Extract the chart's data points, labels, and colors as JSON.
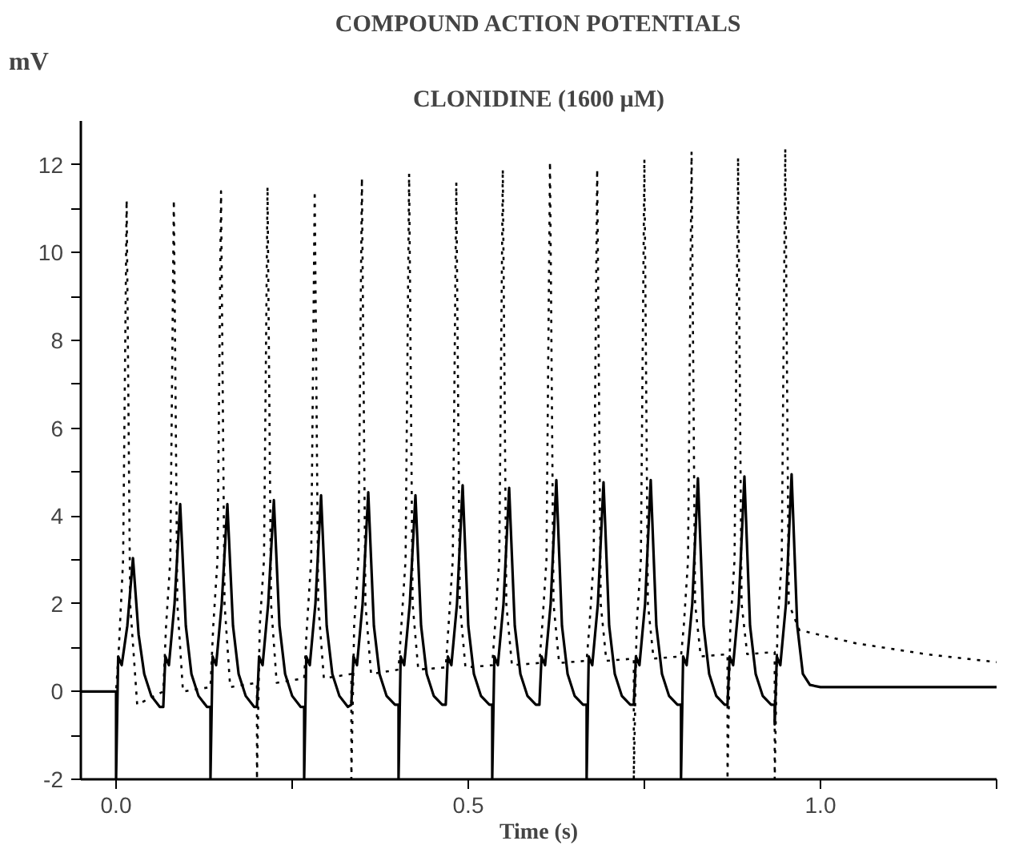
{
  "chart_data": {
    "type": "line",
    "title": "COMPOUND ACTION POTENTIALS",
    "subtitle": "CLONIDINE (1600 µM)",
    "xlabel": "Time (s)",
    "ylabel": "mV",
    "xlim": [
      -0.05,
      1.25
    ],
    "xticks": [
      {
        "value": 0,
        "label": "0.0"
      },
      {
        "value": 0.25,
        "label": null
      },
      {
        "value": 0.5,
        "label": "0.5"
      },
      {
        "value": 0.75,
        "label": null
      },
      {
        "value": 1.0,
        "label": "1.0"
      },
      {
        "value": 1.25,
        "label": null
      }
    ],
    "ylim": [
      -2,
      13
    ],
    "yticks": [
      -2,
      {
        "value": -1,
        "label": null
      },
      0,
      {
        "value": 1,
        "label": null
      },
      2,
      {
        "value": 3,
        "label": null
      },
      4,
      {
        "value": 5,
        "label": null
      },
      6,
      {
        "value": 7,
        "label": null
      },
      8,
      {
        "value": 9,
        "label": null
      },
      10,
      {
        "value": 11,
        "label": null
      },
      12
    ],
    "grid": false,
    "series": [
      {
        "color": "#000000",
        "line_style": "solid",
        "x": [
          -0.05,
          0,
          0,
          0.003,
          0.008,
          0.016,
          0.024,
          0.032,
          0.04,
          0.05,
          0.062,
          0.067,
          0.07,
          0.075,
          0.083,
          0.091,
          0.099,
          0.107,
          0.117,
          0.129,
          0.134,
          0.134,
          0.137,
          0.142,
          0.15,
          0.158,
          0.166,
          0.174,
          0.184,
          0.196,
          0.2,
          0.203,
          0.208,
          0.216,
          0.224,
          0.232,
          0.24,
          0.25,
          0.262,
          0.267,
          0.267,
          0.27,
          0.275,
          0.283,
          0.291,
          0.299,
          0.307,
          0.317,
          0.329,
          0.334,
          0.337,
          0.342,
          0.35,
          0.358,
          0.366,
          0.374,
          0.384,
          0.396,
          0.401,
          0.401,
          0.404,
          0.409,
          0.417,
          0.425,
          0.433,
          0.441,
          0.451,
          0.463,
          0.468,
          0.471,
          0.476,
          0.484,
          0.492,
          0.5,
          0.508,
          0.518,
          0.53,
          0.534,
          0.534,
          0.537,
          0.542,
          0.55,
          0.558,
          0.566,
          0.574,
          0.584,
          0.596,
          0.601,
          0.604,
          0.609,
          0.617,
          0.625,
          0.633,
          0.641,
          0.651,
          0.663,
          0.668,
          0.668,
          0.671,
          0.676,
          0.684,
          0.692,
          0.7,
          0.708,
          0.718,
          0.73,
          0.735,
          0.738,
          0.743,
          0.751,
          0.759,
          0.767,
          0.775,
          0.785,
          0.797,
          0.802,
          0.802,
          0.805,
          0.81,
          0.818,
          0.826,
          0.834,
          0.842,
          0.852,
          0.864,
          0.868,
          0.871,
          0.876,
          0.884,
          0.892,
          0.9,
          0.908,
          0.918,
          0.93,
          0.935,
          0.935,
          0.938,
          0.943,
          0.951,
          0.959,
          0.967,
          0.975,
          0.985,
          1.0,
          1.25
        ],
        "values": [
          0,
          0,
          -2,
          0.8,
          0.6,
          1.5,
          3.04,
          1.3,
          0.4,
          -0.1,
          -0.35,
          -0.35,
          0.8,
          0.6,
          2.0,
          4.27,
          1.5,
          0.4,
          -0.1,
          -0.35,
          -0.35,
          -2,
          0.8,
          0.6,
          2.0,
          4.27,
          1.5,
          0.4,
          -0.1,
          -0.35,
          -0.35,
          0.8,
          0.6,
          2.0,
          4.36,
          1.5,
          0.4,
          -0.1,
          -0.35,
          -0.35,
          -2,
          0.8,
          0.6,
          2.0,
          4.47,
          1.5,
          0.4,
          -0.1,
          -0.35,
          -0.3,
          0.8,
          0.6,
          2.0,
          4.54,
          1.5,
          0.4,
          -0.1,
          -0.3,
          -0.3,
          -2,
          0.8,
          0.6,
          2.0,
          4.47,
          1.5,
          0.4,
          -0.1,
          -0.3,
          -0.3,
          0.8,
          0.6,
          2.0,
          4.7,
          1.5,
          0.4,
          -0.1,
          -0.3,
          -0.3,
          -2,
          0.8,
          0.6,
          2.0,
          4.64,
          1.5,
          0.4,
          -0.1,
          -0.3,
          -0.3,
          0.8,
          0.6,
          2.0,
          4.82,
          1.5,
          0.4,
          -0.1,
          -0.3,
          -0.3,
          -2,
          0.8,
          0.6,
          2.0,
          4.77,
          1.5,
          0.4,
          -0.1,
          -0.3,
          -0.3,
          0.8,
          0.6,
          2.0,
          4.82,
          1.5,
          0.4,
          -0.1,
          -0.3,
          -0.3,
          -2,
          0.8,
          0.6,
          2.0,
          4.86,
          1.5,
          0.4,
          -0.1,
          -0.3,
          -0.3,
          0.8,
          0.6,
          2.0,
          4.9,
          1.5,
          0.4,
          -0.1,
          -0.3,
          -0.3,
          -0.75,
          0.8,
          0.6,
          2.0,
          4.95,
          1.5,
          0.4,
          0.15,
          0.1,
          0.1
        ]
      },
      {
        "color": "#000000",
        "line_style": "dotted",
        "x": [
          -0.05,
          0,
          0.004,
          0.01,
          0.015,
          0.02,
          0.03,
          0.067,
          0.071,
          0.077,
          0.082,
          0.087,
          0.095,
          0.134,
          0.138,
          0.144,
          0.149,
          0.154,
          0.162,
          0.2,
          0.2,
          0.204,
          0.21,
          0.215,
          0.22,
          0.228,
          0.267,
          0.271,
          0.277,
          0.282,
          0.287,
          0.295,
          0.334,
          0.334,
          0.338,
          0.344,
          0.349,
          0.354,
          0.362,
          0.401,
          0.405,
          0.411,
          0.416,
          0.421,
          0.429,
          0.468,
          0.472,
          0.478,
          0.483,
          0.488,
          0.496,
          0.534,
          0.538,
          0.544,
          0.549,
          0.554,
          0.562,
          0.601,
          0.605,
          0.611,
          0.616,
          0.621,
          0.629,
          0.668,
          0.672,
          0.678,
          0.683,
          0.688,
          0.696,
          0.735,
          0.735,
          0.739,
          0.745,
          0.75,
          0.755,
          0.763,
          0.802,
          0.806,
          0.812,
          0.817,
          0.822,
          0.83,
          0.868,
          0.868,
          0.872,
          0.878,
          0.883,
          0.888,
          0.896,
          0.935,
          0.935,
          0.939,
          0.945,
          0.95,
          0.955,
          0.97,
          1.05,
          1.15,
          1.25
        ],
        "values": [
          0,
          0,
          1.0,
          3,
          11.2,
          2,
          -0.3,
          0.0,
          1.5,
          3,
          11.2,
          2,
          0.0,
          0.1,
          1.5,
          3,
          11.4,
          2,
          0.1,
          0.2,
          -2,
          1.5,
          3,
          11.5,
          2,
          0.2,
          0.3,
          1.5,
          3,
          11.4,
          2,
          0.3,
          0.4,
          -2,
          1.5,
          3,
          11.7,
          2,
          0.4,
          0.5,
          1.5,
          3,
          11.8,
          2,
          0.5,
          0.55,
          1.5,
          3,
          11.6,
          2,
          0.55,
          0.6,
          1.5,
          3,
          11.9,
          2,
          0.6,
          0.65,
          1.5,
          3,
          12.07,
          2,
          0.65,
          0.7,
          1.5,
          3,
          11.9,
          2,
          0.7,
          0.75,
          -2,
          1.5,
          3,
          12.13,
          2,
          0.75,
          0.8,
          1.5,
          3,
          12.3,
          2,
          0.8,
          0.85,
          -2,
          1.5,
          3,
          12.17,
          2,
          0.85,
          0.9,
          -2,
          1.5,
          3,
          12.37,
          2,
          1.4,
          1.1,
          0.85,
          0.67
        ]
      }
    ]
  }
}
